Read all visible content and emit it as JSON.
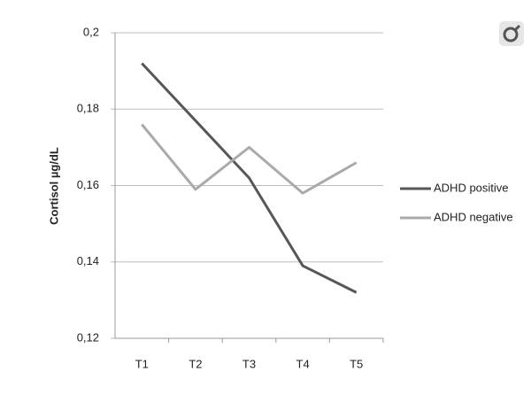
{
  "chart_data": {
    "type": "line",
    "y_label": "Cortisol µg/dL",
    "categories": [
      "T1",
      "T2",
      "T3",
      "T4",
      "T5"
    ],
    "series": [
      {
        "name": "ADHD positive",
        "color": "#575757",
        "values": [
          0.192,
          0.177,
          0.162,
          0.139,
          0.132
        ]
      },
      {
        "name": "ADHD negative",
        "color": "#aaaaaa",
        "values": [
          0.176,
          0.159,
          0.17,
          0.158,
          0.166
        ]
      }
    ],
    "ylim": [
      0.12,
      0.2
    ],
    "yticks": [
      {
        "value": 0.12,
        "label": "0,12"
      },
      {
        "value": 0.14,
        "label": "0,14"
      },
      {
        "value": 0.16,
        "label": "0,16"
      },
      {
        "value": 0.18,
        "label": "0,18"
      },
      {
        "value": 0.2,
        "label": "0,2"
      }
    ],
    "grid": true,
    "legend": "right"
  }
}
